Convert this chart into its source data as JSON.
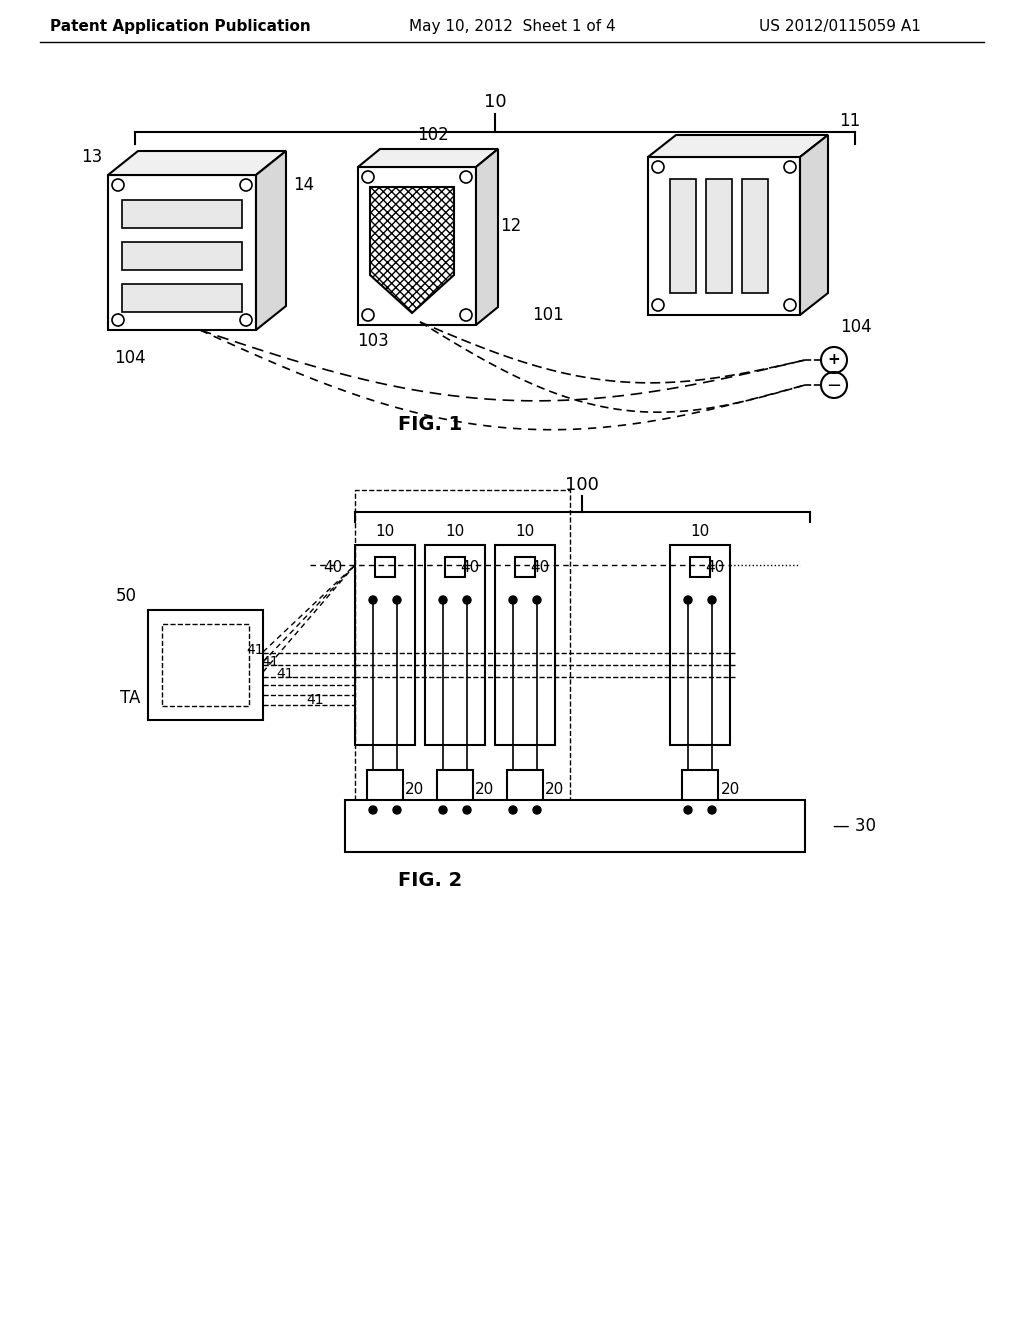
{
  "background_color": "#ffffff",
  "header_left": "Patent Application Publication",
  "header_mid": "May 10, 2012  Sheet 1 of 4",
  "header_right": "US 2012/0115059 A1",
  "fig1_label": "FIG. 1",
  "fig2_label": "FIG. 2",
  "line_color": "#000000",
  "text_color": "#000000"
}
